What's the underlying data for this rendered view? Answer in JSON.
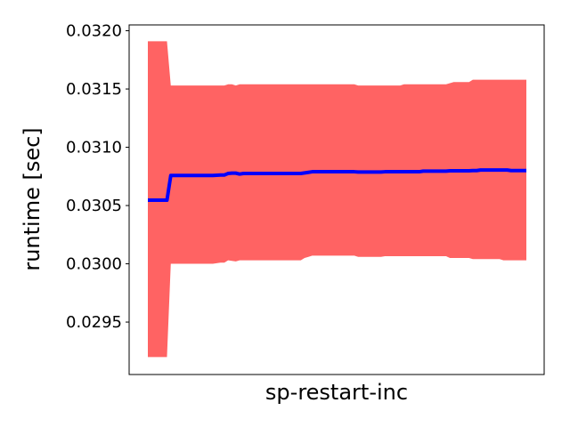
{
  "chart_data": {
    "type": "area",
    "title": "",
    "xlabel": "sp-restart-inc",
    "ylabel": "runtime [sec]",
    "ylim": [
      0.02905,
      0.03205
    ],
    "yticks": [
      "0.0295",
      "0.0300",
      "0.0305",
      "0.0310",
      "0.0315",
      "0.0320"
    ],
    "ytick_values": [
      0.0295,
      0.03,
      0.0305,
      0.031,
      0.0315,
      0.032
    ],
    "x_ticks_shown": false,
    "grid": false,
    "x": [
      0,
      1,
      2,
      3,
      4,
      5,
      6,
      7,
      8,
      9,
      10,
      11,
      12,
      13,
      14,
      15,
      16,
      17,
      18,
      19,
      20,
      21,
      22,
      23,
      24,
      25,
      26,
      27,
      28,
      29,
      30,
      31,
      32,
      33,
      34,
      35,
      36,
      37,
      38,
      39,
      40,
      41,
      42,
      43,
      44,
      45,
      46,
      47,
      48,
      49,
      50,
      51,
      52,
      53,
      54,
      55,
      56,
      57,
      58,
      59,
      60,
      61,
      62,
      63,
      64,
      65,
      66,
      67,
      68,
      69,
      70,
      71,
      72,
      73,
      74,
      75,
      76,
      77,
      78,
      79,
      80,
      81,
      82,
      83,
      84,
      85,
      86,
      87,
      88,
      89,
      90,
      91,
      92,
      93,
      94,
      95,
      96,
      97,
      98,
      99
    ],
    "series": [
      {
        "values": [
          0.030546,
          0.030546,
          0.030546,
          0.030546,
          0.030546,
          0.030546,
          0.030758,
          0.030758,
          0.030758,
          0.030758,
          0.030758,
          0.030758,
          0.030758,
          0.030758,
          0.030758,
          0.030758,
          0.030758,
          0.030758,
          0.03076,
          0.030762,
          0.030762,
          0.030775,
          0.030778,
          0.030778,
          0.03077,
          0.030775,
          0.030775,
          0.030775,
          0.030775,
          0.030775,
          0.030775,
          0.030775,
          0.030775,
          0.030775,
          0.030775,
          0.030775,
          0.030775,
          0.030775,
          0.030775,
          0.030775,
          0.030775,
          0.03078,
          0.030785,
          0.03079,
          0.03079,
          0.03079,
          0.03079,
          0.03079,
          0.03079,
          0.03079,
          0.03079,
          0.03079,
          0.03079,
          0.03079,
          0.03079,
          0.030788,
          0.030788,
          0.030788,
          0.030788,
          0.030788,
          0.030788,
          0.030788,
          0.03079,
          0.03079,
          0.03079,
          0.03079,
          0.03079,
          0.03079,
          0.03079,
          0.03079,
          0.03079,
          0.03079,
          0.030795,
          0.030795,
          0.030795,
          0.030795,
          0.030795,
          0.030795,
          0.030795,
          0.030798,
          0.030798,
          0.030798,
          0.030798,
          0.030798,
          0.030798,
          0.0308,
          0.0308,
          0.030805,
          0.030805,
          0.030805,
          0.030805,
          0.030805,
          0.030805,
          0.030805,
          0.030805,
          0.0308,
          0.0308,
          0.0308,
          0.0308,
          0.0308
        ],
        "upper": [
          0.03191,
          0.03191,
          0.03191,
          0.03191,
          0.03191,
          0.03191,
          0.03153,
          0.03153,
          0.03153,
          0.03153,
          0.03153,
          0.03153,
          0.03153,
          0.03153,
          0.03153,
          0.03153,
          0.03153,
          0.03153,
          0.03153,
          0.03153,
          0.03153,
          0.03154,
          0.03154,
          0.03153,
          0.03154,
          0.03154,
          0.03154,
          0.03154,
          0.03154,
          0.03154,
          0.03154,
          0.03154,
          0.03154,
          0.03154,
          0.03154,
          0.03154,
          0.03154,
          0.03154,
          0.03154,
          0.03154,
          0.03154,
          0.03154,
          0.03154,
          0.03154,
          0.03154,
          0.03154,
          0.03154,
          0.03154,
          0.03154,
          0.03154,
          0.03154,
          0.03154,
          0.03154,
          0.03154,
          0.03154,
          0.03153,
          0.03153,
          0.03153,
          0.03153,
          0.03153,
          0.03153,
          0.03153,
          0.03153,
          0.03153,
          0.03153,
          0.03153,
          0.03153,
          0.03154,
          0.03154,
          0.03154,
          0.03154,
          0.03154,
          0.03154,
          0.03154,
          0.03154,
          0.03154,
          0.03154,
          0.03154,
          0.03154,
          0.03155,
          0.03156,
          0.03156,
          0.03156,
          0.03156,
          0.03156,
          0.03158,
          0.03158,
          0.03158,
          0.03158,
          0.03158,
          0.03158,
          0.03158,
          0.03158,
          0.03158,
          0.03158,
          0.03158,
          0.03158,
          0.03158,
          0.03158,
          0.03158
        ],
        "lower": [
          0.0292,
          0.0292,
          0.0292,
          0.0292,
          0.0292,
          0.0292,
          0.03,
          0.03,
          0.03,
          0.03,
          0.03,
          0.03,
          0.03,
          0.03,
          0.03,
          0.03,
          0.03,
          0.03,
          0.030005,
          0.03001,
          0.03001,
          0.03003,
          0.030025,
          0.03002,
          0.03003,
          0.03003,
          0.03003,
          0.03003,
          0.03003,
          0.03003,
          0.03003,
          0.03003,
          0.03003,
          0.03003,
          0.03003,
          0.03003,
          0.03003,
          0.03003,
          0.03003,
          0.03003,
          0.03003,
          0.03005,
          0.03006,
          0.03007,
          0.03007,
          0.03007,
          0.03007,
          0.03007,
          0.03007,
          0.03007,
          0.03007,
          0.03007,
          0.03007,
          0.03007,
          0.03007,
          0.03006,
          0.03006,
          0.03006,
          0.03006,
          0.03006,
          0.03006,
          0.03006,
          0.030065,
          0.030065,
          0.030065,
          0.030065,
          0.030065,
          0.030065,
          0.030065,
          0.030065,
          0.030065,
          0.030065,
          0.030065,
          0.030065,
          0.030065,
          0.030065,
          0.030065,
          0.030065,
          0.030065,
          0.03005,
          0.03005,
          0.03005,
          0.03005,
          0.03005,
          0.03005,
          0.03004,
          0.03004,
          0.03004,
          0.03004,
          0.03004,
          0.03004,
          0.03004,
          0.03004,
          0.03003,
          0.03003,
          0.03003,
          0.03003,
          0.03003,
          0.03003,
          0.03003
        ],
        "line_color": "#0000ff",
        "band_color": "#ff6363"
      }
    ]
  }
}
